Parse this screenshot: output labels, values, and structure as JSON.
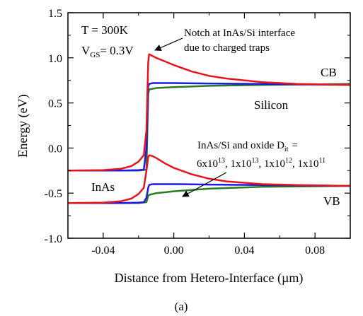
{
  "chart_data": {
    "type": "line",
    "title": "",
    "xlabel": "Distance from Hetero-Interface (µm)",
    "ylabel": "Energy (eV)",
    "caption": "(a)",
    "xlim": [
      -0.06,
      0.1
    ],
    "ylim": [
      -1.0,
      1.5
    ],
    "xticks": [
      -0.04,
      0.0,
      0.04,
      0.08
    ],
    "xtick_labels": [
      "-0.04",
      "0.00",
      "0.04",
      "0.08"
    ],
    "yticks": [
      -1.0,
      -0.5,
      0.0,
      0.5,
      1.0,
      1.5
    ],
    "ytick_labels": [
      "-1.0",
      "-0.5",
      "0.0",
      "0.5",
      "1.0",
      "1.5"
    ],
    "grid": false,
    "annotations": {
      "conditions_temp": "T = 300K",
      "conditions_vgs_main": "V",
      "conditions_vgs_sub": "GS",
      "conditions_vgs_val": "= 0.3V",
      "notch_line1": "Notch at InAs/Si interface",
      "notch_line2": "due to charged traps",
      "cb_label": "CB",
      "vb_label": "VB",
      "silicon_label": "Silicon",
      "inas_label": "InAs",
      "dit_line1_main": "InAs/Si and oxide D",
      "dit_line1_sub": "it",
      "dit_line1_end": "=",
      "dit_values": [
        {
          "base": "6x10",
          "exp": "13",
          "sep": ", "
        },
        {
          "base": "1x10",
          "exp": "13",
          "sep": ", "
        },
        {
          "base": "1x10",
          "exp": "12",
          "sep": ", "
        },
        {
          "base": "1x10",
          "exp": "11",
          "sep": ""
        }
      ]
    },
    "series": [
      {
        "band": "CB",
        "color": "#e8141c",
        "x": [
          -0.06,
          -0.04,
          -0.03,
          -0.024,
          -0.02,
          -0.017,
          -0.0155,
          -0.0145,
          -0.014,
          -0.012,
          -0.01,
          -0.005,
          0.0,
          0.01,
          0.02,
          0.03,
          0.05,
          0.07,
          0.1
        ],
        "y": [
          -0.25,
          -0.245,
          -0.23,
          -0.2,
          -0.15,
          -0.08,
          0.2,
          0.95,
          1.04,
          1.02,
          1.0,
          0.96,
          0.92,
          0.85,
          0.8,
          0.77,
          0.73,
          0.71,
          0.7
        ]
      },
      {
        "band": "CB",
        "color": "#1a1ae6",
        "x": [
          -0.06,
          -0.03,
          -0.02,
          -0.017,
          -0.0155,
          -0.0145,
          -0.014,
          -0.012,
          -0.005,
          0.0,
          0.02,
          0.05,
          0.1
        ],
        "y": [
          -0.25,
          -0.25,
          -0.245,
          -0.24,
          0.0,
          0.68,
          0.71,
          0.72,
          0.72,
          0.72,
          0.715,
          0.71,
          0.7
        ]
      },
      {
        "band": "CB",
        "color": "#2a7a1e",
        "x": [
          -0.06,
          -0.02,
          -0.0155,
          -0.0145,
          -0.014,
          -0.01,
          0.0,
          0.02,
          0.05,
          0.1
        ],
        "y": [
          -0.25,
          -0.25,
          -0.24,
          0.6,
          0.65,
          0.665,
          0.675,
          0.69,
          0.7,
          0.71
        ]
      },
      {
        "band": "VB",
        "color": "#e8141c",
        "x": [
          -0.06,
          -0.04,
          -0.03,
          -0.024,
          -0.02,
          -0.017,
          -0.0155,
          -0.0145,
          -0.014,
          -0.012,
          -0.01,
          -0.005,
          0.0,
          0.01,
          0.02,
          0.03,
          0.05,
          0.07,
          0.1
        ],
        "y": [
          -0.61,
          -0.605,
          -0.59,
          -0.56,
          -0.51,
          -0.44,
          -0.25,
          -0.1,
          -0.08,
          -0.09,
          -0.11,
          -0.17,
          -0.22,
          -0.29,
          -0.34,
          -0.37,
          -0.4,
          -0.41,
          -0.42
        ]
      },
      {
        "band": "VB",
        "color": "#1a1ae6",
        "x": [
          -0.06,
          -0.03,
          -0.02,
          -0.017,
          -0.0155,
          -0.0145,
          -0.014,
          -0.012,
          -0.005,
          0.0,
          0.02,
          0.05,
          0.1
        ],
        "y": [
          -0.61,
          -0.61,
          -0.605,
          -0.6,
          -0.55,
          -0.44,
          -0.41,
          -0.4,
          -0.4,
          -0.4,
          -0.405,
          -0.41,
          -0.42
        ]
      },
      {
        "band": "VB",
        "color": "#2a7a1e",
        "x": [
          -0.06,
          -0.02,
          -0.0155,
          -0.0145,
          -0.014,
          -0.01,
          0.0,
          0.02,
          0.05,
          0.1
        ],
        "y": [
          -0.61,
          -0.61,
          -0.6,
          -0.53,
          -0.52,
          -0.5,
          -0.48,
          -0.45,
          -0.43,
          -0.42
        ]
      }
    ]
  }
}
